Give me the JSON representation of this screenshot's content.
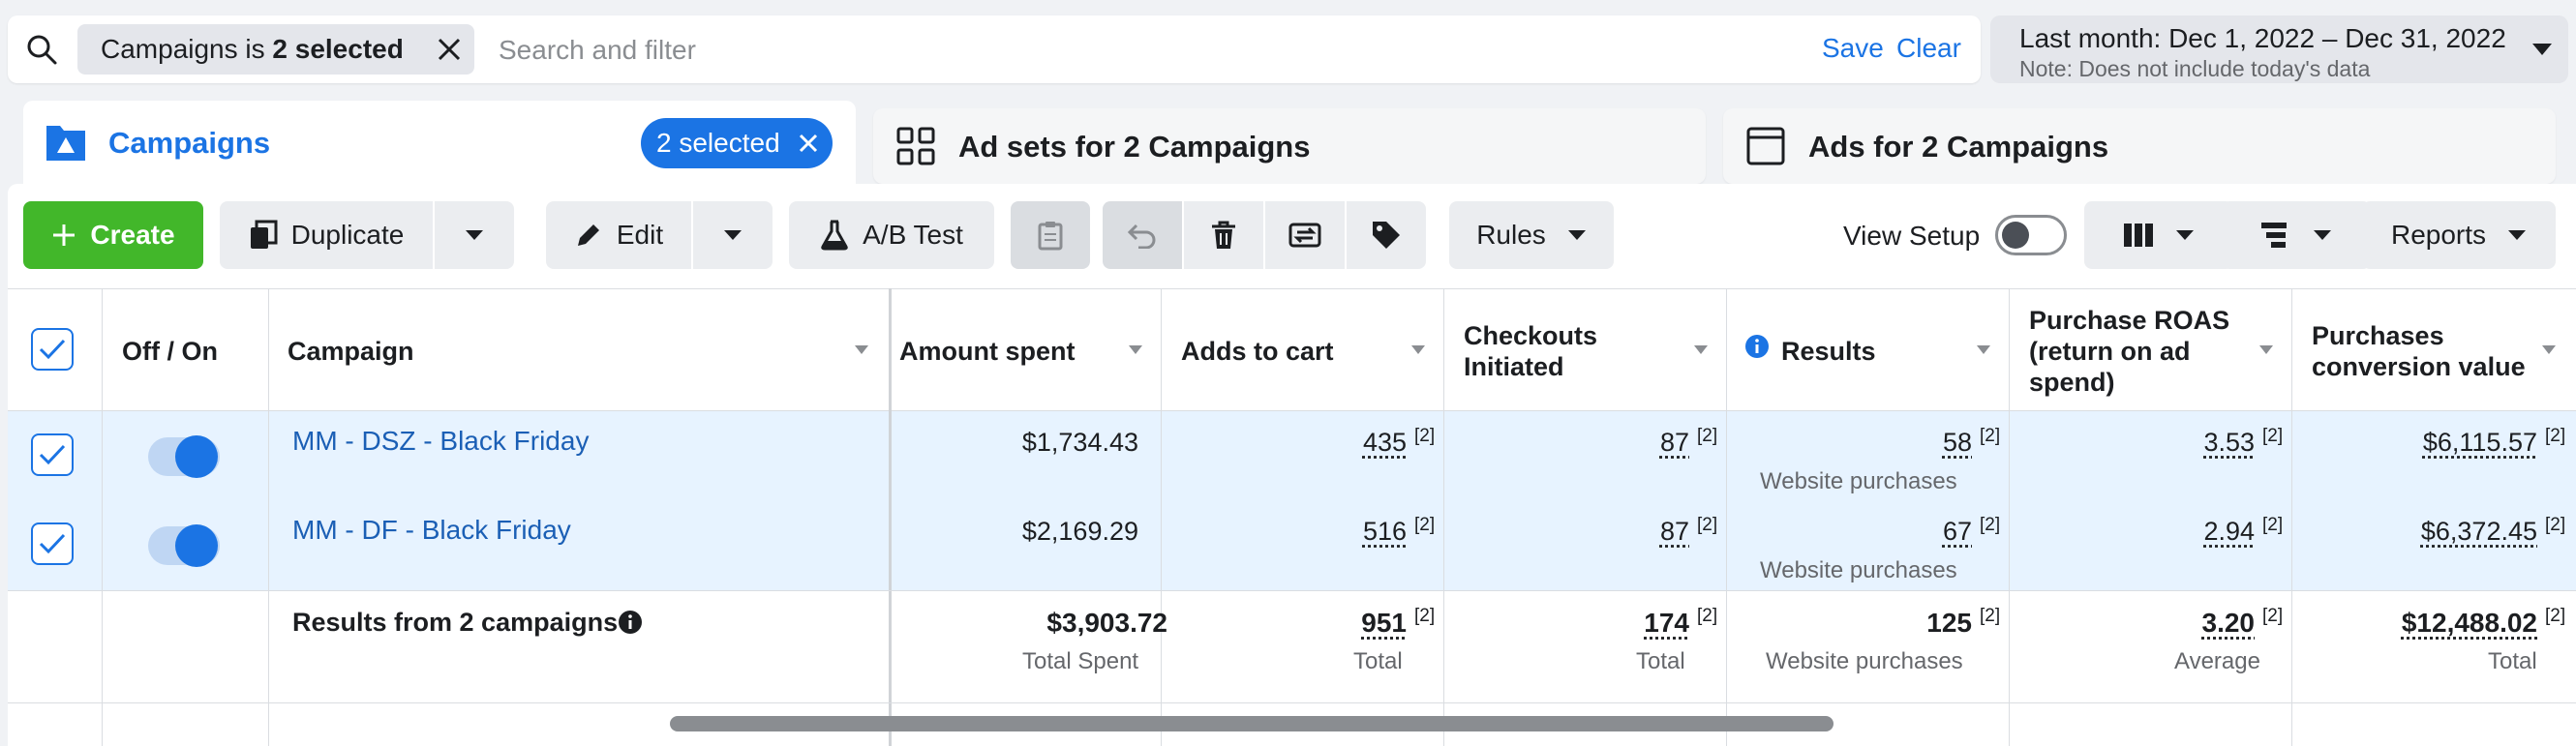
{
  "filter": {
    "chip_prefix": "Campaigns is ",
    "chip_value": "2 selected",
    "search_placeholder": "Search and filter",
    "save_label": "Save",
    "clear_label": "Clear"
  },
  "date_range": {
    "label": "Last month: Dec 1, 2022 – Dec 31, 2022",
    "note": "Note: Does not include today's data"
  },
  "tabs": [
    {
      "label": "Campaigns",
      "badge": "2 selected"
    },
    {
      "label": "Ad sets for 2 Campaigns"
    },
    {
      "label": "Ads for 2 Campaigns"
    }
  ],
  "toolbar": {
    "create": "Create",
    "duplicate": "Duplicate",
    "edit": "Edit",
    "ab_test": "A/B Test",
    "rules": "Rules",
    "view_setup": "View Setup",
    "reports": "Reports"
  },
  "table": {
    "columns": {
      "off_on": "Off / On",
      "campaign": "Campaign",
      "amount_spent": "Amount spent",
      "adds_to_cart": "Adds to cart",
      "checkouts_l1": "Checkouts",
      "checkouts_l2": "Initiated",
      "results": "Results",
      "roas_l1": "Purchase ROAS",
      "roas_l2": "(return on ad",
      "roas_l3": "spend)",
      "pcv_l1": "Purchases",
      "pcv_l2": "conversion value"
    },
    "footnote": "[2]",
    "rows": [
      {
        "campaign": "MM - DSZ - Black Friday",
        "amount_spent": "$1,734.43",
        "adds_to_cart": "435",
        "checkouts": "87",
        "results": "58",
        "results_type": "Website purchases",
        "roas": "3.53",
        "conversion_value": "$6,115.57"
      },
      {
        "campaign": "MM - DF - Black Friday",
        "amount_spent": "$2,169.29",
        "adds_to_cart": "516",
        "checkouts": "87",
        "results": "67",
        "results_type": "Website purchases",
        "roas": "2.94",
        "conversion_value": "$6,372.45"
      }
    ],
    "totals": {
      "label": "Results from 2 campaigns",
      "amount_spent": "$3,903.72",
      "amount_spent_sub": "Total Spent",
      "adds_to_cart": "951",
      "adds_to_cart_sub": "Total",
      "checkouts": "174",
      "checkouts_sub": "Total",
      "results": "125",
      "results_sub": "Website purchases",
      "roas": "3.20",
      "roas_sub": "Average",
      "conversion_value": "$12,488.02",
      "conversion_value_sub": "Total"
    }
  },
  "colors": {
    "accent": "#1b74e4",
    "create": "#42b72a",
    "selected_row": "#e7f3ff"
  }
}
